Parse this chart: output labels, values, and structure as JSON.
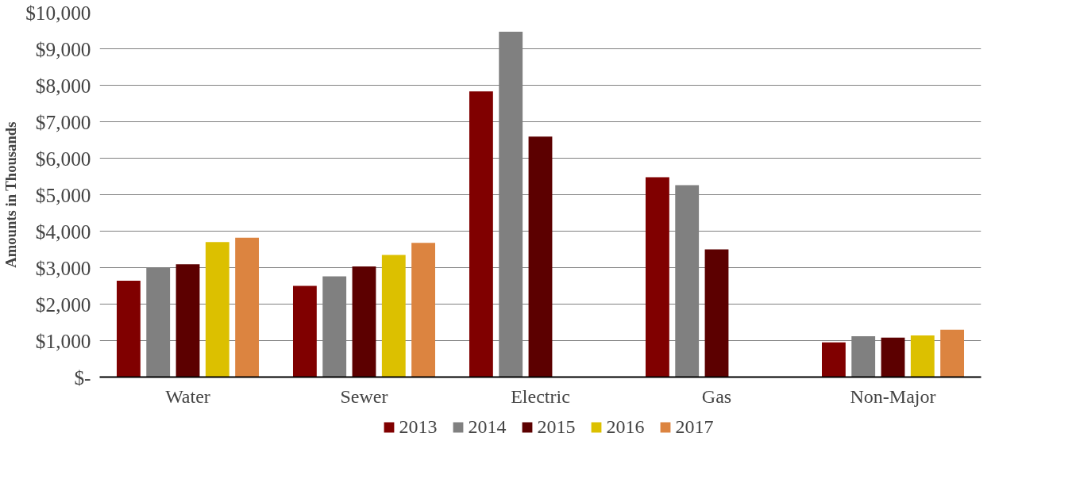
{
  "chart_data": {
    "type": "bar",
    "ylabel": "Amounts in Thousands",
    "categories": [
      "Water",
      "Sewer",
      "Electric",
      "Gas",
      "Non-Major"
    ],
    "series": [
      {
        "name": "2013",
        "color": "#800000",
        "values": [
          2640,
          2500,
          7830,
          5480,
          950
        ]
      },
      {
        "name": "2014",
        "color": "#808080",
        "values": [
          2990,
          2760,
          9470,
          5260,
          1120
        ]
      },
      {
        "name": "2015",
        "color": "#5c0000",
        "values": [
          3090,
          3030,
          6590,
          3500,
          1080
        ]
      },
      {
        "name": "2016",
        "color": "#dcc000",
        "values": [
          3700,
          3350,
          null,
          null,
          1140
        ]
      },
      {
        "name": "2017",
        "color": "#dc8440",
        "values": [
          3820,
          3680,
          null,
          null,
          1300
        ]
      }
    ],
    "ylim": [
      0,
      10000
    ],
    "yticks": [
      {
        "value": 0,
        "label": "$-"
      },
      {
        "value": 1000,
        "label": "$1,000"
      },
      {
        "value": 2000,
        "label": "$2,000"
      },
      {
        "value": 3000,
        "label": "$3,000"
      },
      {
        "value": 4000,
        "label": "$4,000"
      },
      {
        "value": 5000,
        "label": "$5,000"
      },
      {
        "value": 6000,
        "label": "$6,000"
      },
      {
        "value": 7000,
        "label": "$7,000"
      },
      {
        "value": 8000,
        "label": "$8,000"
      },
      {
        "value": 9000,
        "label": "$9,000"
      },
      {
        "value": 10000,
        "label": "$10,000"
      }
    ],
    "grid": "y",
    "legend": "bottom"
  }
}
